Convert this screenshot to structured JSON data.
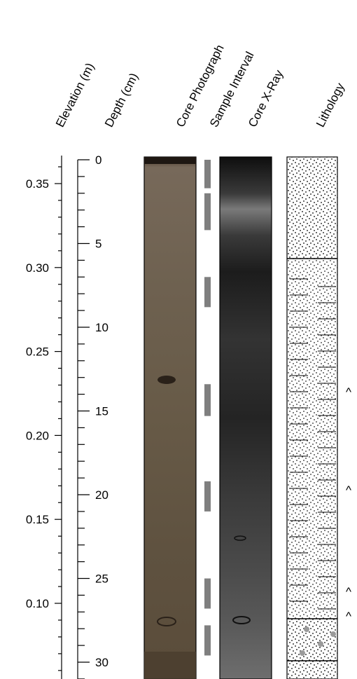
{
  "headers": {
    "elevation": "Elevation (m)",
    "depth": "Depth (cm)",
    "core_photograph": "Core Photograph",
    "sample_interval": "Sample Interval",
    "core_xray": "Core X-Ray",
    "lithology": "Lithology"
  },
  "elevation_axis": {
    "labels": [
      "0.35",
      "0.30",
      "0.25",
      "0.20",
      "0.15",
      "0.10"
    ]
  },
  "depth_axis": {
    "labels": [
      "0",
      "5",
      "10",
      "15",
      "20",
      "25",
      "30"
    ]
  },
  "markers": {
    "symbol": "^",
    "count": 4
  },
  "colors": {
    "core_photo": "#6b5c48",
    "xray_dark": "#1c1c1c",
    "sample_bar": "#7f7f7f"
  }
}
